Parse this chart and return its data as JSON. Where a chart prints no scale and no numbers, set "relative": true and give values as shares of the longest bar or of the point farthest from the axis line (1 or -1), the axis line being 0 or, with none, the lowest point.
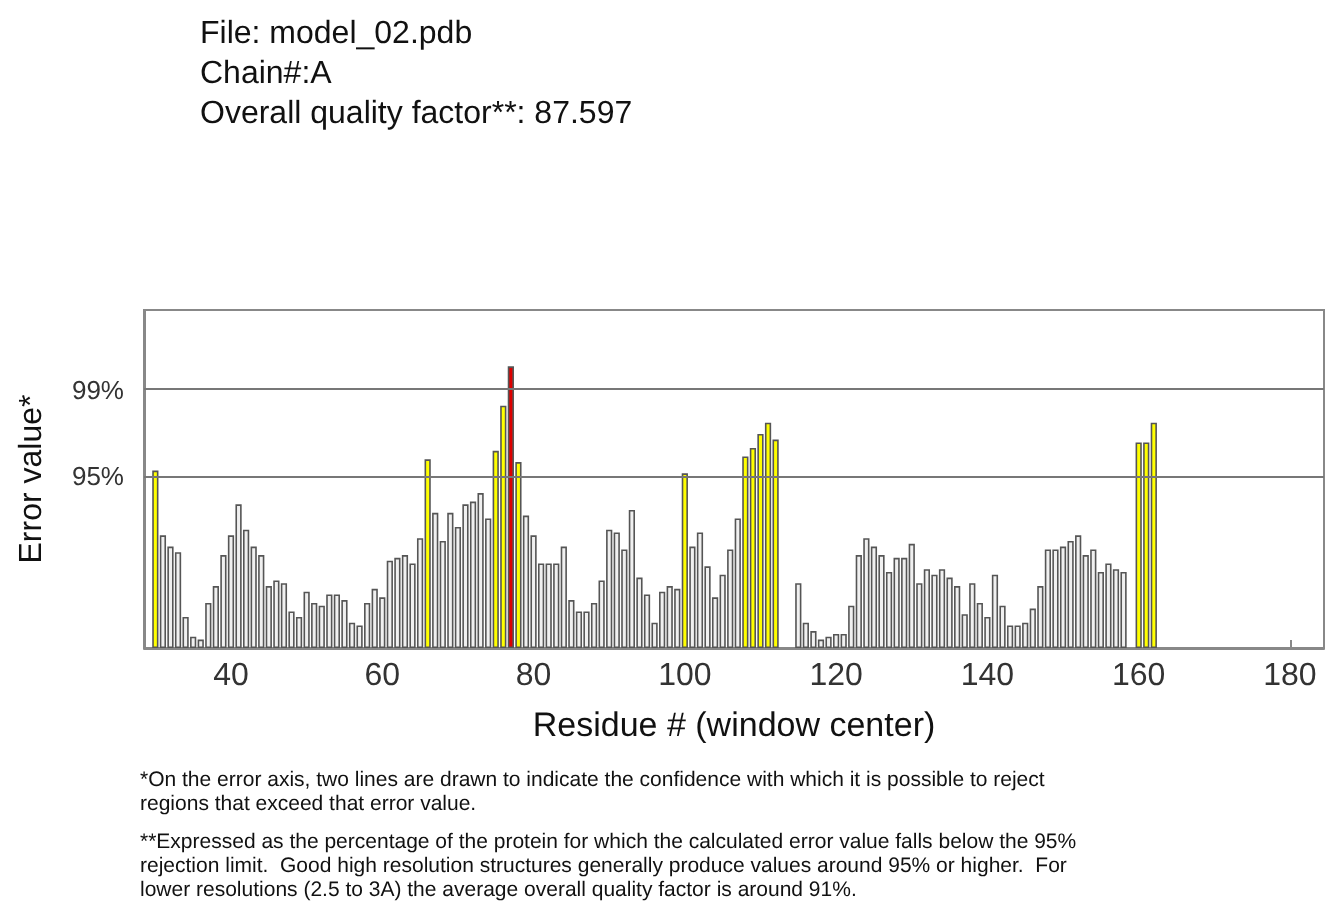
{
  "chart_data": {
    "type": "bar",
    "title": "File: model_02.pdb\nChain#:A\nOverall quality factor**: 87.597",
    "xlabel": "Residue # (window center)",
    "ylabel": "Error value*",
    "x": [
      30,
      31,
      32,
      33,
      34,
      35,
      36,
      37,
      38,
      39,
      40,
      41,
      42,
      43,
      44,
      45,
      46,
      47,
      48,
      49,
      50,
      51,
      52,
      53,
      54,
      55,
      56,
      57,
      58,
      59,
      60,
      61,
      62,
      63,
      64,
      65,
      66,
      67,
      68,
      69,
      70,
      71,
      72,
      73,
      74,
      75,
      76,
      77,
      78,
      79,
      80,
      81,
      82,
      83,
      84,
      85,
      86,
      87,
      88,
      89,
      90,
      91,
      92,
      93,
      94,
      95,
      96,
      97,
      98,
      99,
      100,
      101,
      102,
      103,
      104,
      105,
      106,
      107,
      108,
      109,
      110,
      111,
      112,
      113,
      114,
      115,
      116,
      117,
      118,
      119,
      120,
      121,
      122,
      123,
      124,
      125,
      126,
      127,
      128,
      129,
      130,
      131,
      132,
      133,
      134,
      135,
      136,
      137,
      138,
      139,
      140,
      141,
      142,
      143,
      144,
      145,
      146,
      147,
      148,
      149,
      150,
      151,
      152,
      153,
      154,
      155,
      156,
      157,
      158,
      159,
      160,
      161,
      162
    ],
    "values": [
      0.63,
      0.4,
      0.36,
      0.34,
      0.11,
      0.04,
      0.03,
      0.16,
      0.22,
      0.33,
      0.4,
      0.51,
      0.42,
      0.36,
      0.33,
      0.22,
      0.24,
      0.23,
      0.13,
      0.11,
      0.2,
      0.16,
      0.15,
      0.19,
      0.19,
      0.17,
      0.09,
      0.08,
      0.16,
      0.21,
      0.18,
      0.31,
      0.32,
      0.33,
      0.3,
      0.39,
      0.67,
      0.48,
      0.38,
      0.48,
      0.43,
      0.51,
      0.52,
      0.55,
      0.46,
      0.7,
      0.86,
      1,
      0.66,
      0.47,
      0.4,
      0.3,
      0.3,
      0.3,
      0.36,
      0.17,
      0.13,
      0.13,
      0.16,
      0.24,
      0.42,
      0.41,
      0.35,
      0.49,
      0.25,
      0.19,
      0.09,
      0.2,
      0.22,
      0.21,
      0.62,
      0.36,
      0.41,
      0.29,
      0.18,
      0.26,
      0.35,
      0.46,
      0.68,
      0.71,
      0.76,
      0.8,
      0.74,
      null,
      null,
      0.23,
      0.09,
      0.06,
      0.03,
      0.04,
      0.05,
      0.05,
      0.15,
      0.33,
      0.39,
      0.36,
      0.33,
      0.27,
      0.32,
      0.32,
      0.37,
      0.23,
      0.28,
      0.26,
      0.28,
      0.25,
      0.22,
      0.12,
      0.23,
      0.16,
      0.11,
      0.26,
      0.15,
      0.08,
      0.08,
      0.09,
      0.14,
      0.22,
      0.35,
      0.35,
      0.36,
      0.38,
      0.4,
      0.33,
      0.35,
      0.27,
      0.3,
      0.28,
      0.27,
      null,
      0.73,
      0.73,
      0.8
    ],
    "relative": true,
    "colors": [
      "#ffff00",
      "#f0f0f0",
      "#f0f0f0",
      "#f0f0f0",
      "#f0f0f0",
      "#f0f0f0",
      "#f0f0f0",
      "#f0f0f0",
      "#f0f0f0",
      "#f0f0f0",
      "#f0f0f0",
      "#f0f0f0",
      "#f0f0f0",
      "#f0f0f0",
      "#f0f0f0",
      "#f0f0f0",
      "#f0f0f0",
      "#f0f0f0",
      "#f0f0f0",
      "#f0f0f0",
      "#f0f0f0",
      "#f0f0f0",
      "#f0f0f0",
      "#f0f0f0",
      "#f0f0f0",
      "#f0f0f0",
      "#f0f0f0",
      "#f0f0f0",
      "#f0f0f0",
      "#f0f0f0",
      "#f0f0f0",
      "#f0f0f0",
      "#f0f0f0",
      "#f0f0f0",
      "#f0f0f0",
      "#f0f0f0",
      "#ffff00",
      "#f0f0f0",
      "#f0f0f0",
      "#f0f0f0",
      "#f0f0f0",
      "#f0f0f0",
      "#f0f0f0",
      "#f0f0f0",
      "#f0f0f0",
      "#ffff00",
      "#ffff00",
      "#dd0000",
      "#ffff00",
      "#f0f0f0",
      "#f0f0f0",
      "#f0f0f0",
      "#f0f0f0",
      "#f0f0f0",
      "#f0f0f0",
      "#f0f0f0",
      "#f0f0f0",
      "#f0f0f0",
      "#f0f0f0",
      "#f0f0f0",
      "#f0f0f0",
      "#f0f0f0",
      "#f0f0f0",
      "#f0f0f0",
      "#f0f0f0",
      "#f0f0f0",
      "#f0f0f0",
      "#f0f0f0",
      "#f0f0f0",
      "#f0f0f0",
      "#ffff00",
      "#f0f0f0",
      "#f0f0f0",
      "#f0f0f0",
      "#f0f0f0",
      "#f0f0f0",
      "#f0f0f0",
      "#f0f0f0",
      "#ffff00",
      "#ffff00",
      "#ffff00",
      "#ffff00",
      "#ffff00",
      "#f0f0f0",
      "#f0f0f0",
      "#f0f0f0",
      "#f0f0f0",
      "#f0f0f0",
      "#f0f0f0",
      "#f0f0f0",
      "#f0f0f0",
      "#f0f0f0",
      "#f0f0f0",
      "#f0f0f0",
      "#f0f0f0",
      "#f0f0f0",
      "#f0f0f0",
      "#f0f0f0",
      "#f0f0f0",
      "#f0f0f0",
      "#f0f0f0",
      "#f0f0f0",
      "#f0f0f0",
      "#f0f0f0",
      "#f0f0f0",
      "#f0f0f0",
      "#f0f0f0",
      "#f0f0f0",
      "#f0f0f0",
      "#f0f0f0",
      "#f0f0f0",
      "#f0f0f0",
      "#f0f0f0",
      "#f0f0f0",
      "#f0f0f0",
      "#f0f0f0",
      "#f0f0f0",
      "#f0f0f0",
      "#f0f0f0",
      "#f0f0f0",
      "#f0f0f0",
      "#f0f0f0",
      "#f0f0f0",
      "#f0f0f0",
      "#f0f0f0",
      "#f0f0f0",
      "#f0f0f0",
      "#f0f0f0",
      "#f0f0f0",
      "#f0f0f0",
      "#ffff00",
      "#ffff00",
      "#ffff00"
    ],
    "xlim": [
      28.5,
      184.5
    ],
    "xticks": [
      40,
      60,
      80,
      100,
      120,
      140,
      160,
      180
    ],
    "ref_lines": [
      {
        "axis": "y",
        "value": 0.61,
        "color": "#777777"
      },
      {
        "axis": "y",
        "value": 0.915,
        "color": "#777777"
      }
    ],
    "annotations": [
      "95%",
      "99%",
      "*On the error axis, two lines are drawn to indicate the confidence with which it is possible to reject regions that exceed that error value.",
      "**Expressed as the percentage of the protein for which the calculated error value falls below the 95% rejection limit.  Good high resolution structures generally produce values around 95% or higher.  For lower resolutions (2.5 to 3A) the average overall quality factor is around 91%."
    ]
  }
}
